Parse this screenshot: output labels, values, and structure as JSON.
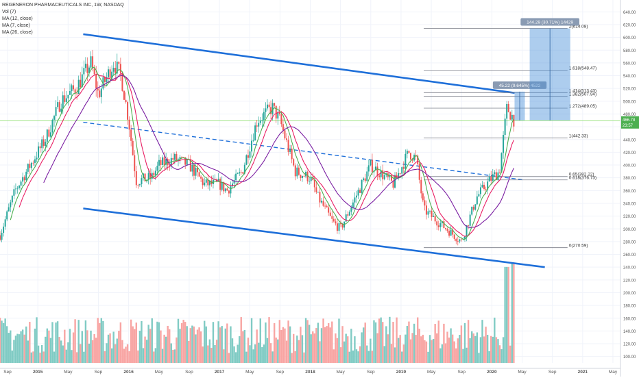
{
  "header": {
    "title": "REGENERON PHARMACEUTICALS INC, 1W, NASDAQ",
    "indicators": [
      "Vol (7)",
      "MA (12, close)",
      "MA (7, close)",
      "MA (26, close)"
    ]
  },
  "colors": {
    "up": "#26a69a",
    "down": "#ef5350",
    "vol_up": "#80cbc4",
    "vol_down": "#f8a5a3",
    "ma12": "#e91e63",
    "ma7": "#4caf50",
    "ma26": "#7b1fa2",
    "channel": "#1e6fd9",
    "fib": "#787b86",
    "projection": "#4a90d9",
    "price_line": "#7ed957"
  },
  "chart_data": {
    "type": "candlestick",
    "title": "REGENERON PHARMACEUTICALS INC, 1W, NASDAQ",
    "x_range": [
      "2014-08",
      "2021-06"
    ],
    "ylim": [
      90,
      650
    ],
    "y_ticks": [
      100,
      120,
      140,
      160,
      180,
      200,
      220,
      240,
      260,
      280,
      300,
      320,
      340,
      360,
      380,
      400,
      420,
      440,
      460,
      480,
      500,
      520,
      540,
      560,
      580,
      600,
      620,
      640
    ],
    "x_ticks": [
      {
        "date": "2014-09",
        "label": "Sep"
      },
      {
        "date": "2015-01",
        "label": "2015"
      },
      {
        "date": "2015-05",
        "label": "May"
      },
      {
        "date": "2015-09",
        "label": "Sep"
      },
      {
        "date": "2016-01",
        "label": "2016"
      },
      {
        "date": "2016-05",
        "label": "May"
      },
      {
        "date": "2016-09",
        "label": "Sep"
      },
      {
        "date": "2017-01",
        "label": "2017"
      },
      {
        "date": "2017-05",
        "label": "May"
      },
      {
        "date": "2017-09",
        "label": "Sep"
      },
      {
        "date": "2018-01",
        "label": "2018"
      },
      {
        "date": "2018-05",
        "label": "May"
      },
      {
        "date": "2018-09",
        "label": "Sep"
      },
      {
        "date": "2019-01",
        "label": "2019"
      },
      {
        "date": "2019-05",
        "label": "May"
      },
      {
        "date": "2019-09",
        "label": "Sep"
      },
      {
        "date": "2020-01",
        "label": "2020"
      },
      {
        "date": "2020-05",
        "label": "May"
      },
      {
        "date": "2020-09",
        "label": "Sep"
      },
      {
        "date": "2021-01",
        "label": "2021"
      },
      {
        "date": "2021-05",
        "label": "May"
      }
    ],
    "price_anchors": [
      {
        "date": "2014-08",
        "close": 290
      },
      {
        "date": "2014-10",
        "close": 360
      },
      {
        "date": "2014-12",
        "close": 400
      },
      {
        "date": "2015-02",
        "close": 440
      },
      {
        "date": "2015-04",
        "close": 500
      },
      {
        "date": "2015-06",
        "close": 520
      },
      {
        "date": "2015-08",
        "close": 560
      },
      {
        "date": "2015-09",
        "close": 510
      },
      {
        "date": "2015-11",
        "close": 560
      },
      {
        "date": "2015-12",
        "close": 540
      },
      {
        "date": "2016-01",
        "close": 470
      },
      {
        "date": "2016-02",
        "close": 375
      },
      {
        "date": "2016-04",
        "close": 380
      },
      {
        "date": "2016-05",
        "close": 400
      },
      {
        "date": "2016-07",
        "close": 410
      },
      {
        "date": "2016-09",
        "close": 400
      },
      {
        "date": "2016-11",
        "close": 370
      },
      {
        "date": "2017-01",
        "close": 370
      },
      {
        "date": "2017-02",
        "close": 360
      },
      {
        "date": "2017-04",
        "close": 390
      },
      {
        "date": "2017-06",
        "close": 470
      },
      {
        "date": "2017-08",
        "close": 490
      },
      {
        "date": "2017-09",
        "close": 470
      },
      {
        "date": "2017-11",
        "close": 390
      },
      {
        "date": "2018-01",
        "close": 380
      },
      {
        "date": "2018-02",
        "close": 350
      },
      {
        "date": "2018-04",
        "close": 310
      },
      {
        "date": "2018-05",
        "close": 300
      },
      {
        "date": "2018-07",
        "close": 350
      },
      {
        "date": "2018-09",
        "close": 400
      },
      {
        "date": "2018-10",
        "close": 390
      },
      {
        "date": "2018-12",
        "close": 370
      },
      {
        "date": "2019-02",
        "close": 420
      },
      {
        "date": "2019-03",
        "close": 410
      },
      {
        "date": "2019-04",
        "close": 330
      },
      {
        "date": "2019-06",
        "close": 310
      },
      {
        "date": "2019-07",
        "close": 300
      },
      {
        "date": "2019-09",
        "close": 280
      },
      {
        "date": "2019-11",
        "close": 350
      },
      {
        "date": "2020-01",
        "close": 380
      },
      {
        "date": "2020-02",
        "close": 390
      },
      {
        "date": "2020-03",
        "close": 490
      },
      {
        "date": "2020-04",
        "close": 470
      }
    ],
    "volume_ylim": [
      90,
      240
    ],
    "volume_y_ticks": [
      100,
      120,
      140,
      160,
      180,
      200,
      220,
      240
    ],
    "volume_spikes": [
      {
        "date": "2020-03",
        "value": 235
      },
      {
        "date": "2020-04",
        "value": 240
      }
    ],
    "moving_averages": [
      {
        "name": "MA (12, close)",
        "period": 12
      },
      {
        "name": "MA (7, close)",
        "period": 7
      },
      {
        "name": "MA (26, close)",
        "period": 26
      }
    ],
    "channel": {
      "upper": {
        "from": {
          "date": "2015-07",
          "price": 605
        },
        "to": {
          "date": "2020-04",
          "price": 513
        }
      },
      "lower": {
        "from": {
          "date": "2015-07",
          "price": 332
        },
        "to": {
          "date": "2020-08",
          "price": 240
        }
      },
      "mid": {
        "from": {
          "date": "2015-07",
          "price": 467
        },
        "to": {
          "date": "2020-05",
          "price": 377
        }
      }
    },
    "fib_levels": [
      {
        "ratio": "0",
        "price": 270.59,
        "label": "0(270.59)"
      },
      {
        "ratio": "0.618",
        "price": 376.73,
        "label": "0.618(376.73)"
      },
      {
        "ratio": "0.65",
        "price": 382.22,
        "label": "0.65(382.22)"
      },
      {
        "ratio": "1",
        "price": 442.33,
        "label": "1(442.33)"
      },
      {
        "ratio": "1.272",
        "price": 489.05,
        "label": "1.272(489.05)"
      },
      {
        "ratio": "1.382",
        "price": 507.94,
        "label": "1.382(507.94)"
      },
      {
        "ratio": "1.414",
        "price": 513.43,
        "label": "1.414(513.43)"
      },
      {
        "ratio": "1.618",
        "price": 548.47,
        "label": "1.618(548.47)"
      },
      {
        "ratio": "2",
        "price": 614.08,
        "label": "2(614.08)"
      }
    ],
    "projections": [
      {
        "label": "45.22 (9.645%) 4522",
        "from_date": "2020-04",
        "to_date": "2020-05",
        "low": 470,
        "high": 515
      },
      {
        "label": "144.29 (30.71%) 14429",
        "from_date": "2020-06",
        "to_date": "2020-11",
        "low": 470,
        "high": 614
      }
    ],
    "current_price": {
      "value": 466.78,
      "label": "466.78",
      "sub_label": "23:57"
    },
    "last_price_line": 469.5
  }
}
